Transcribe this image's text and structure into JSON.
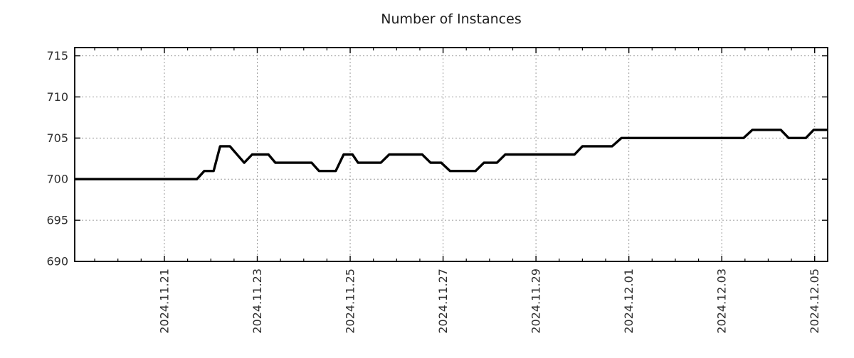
{
  "page": {
    "background": "#ffffff"
  },
  "chart_data": {
    "type": "line",
    "title": "Number of Instances",
    "xlabel": "",
    "ylabel": "",
    "legend": false,
    "grid": true,
    "x_axis": {
      "kind": "time",
      "units": "days since 2024-11-19 00:00",
      "xlim": [
        0.07,
        16.28
      ],
      "minor_tick_step_days": 0.5,
      "major_ticks": [
        {
          "t": 2,
          "label": "2024.11.21"
        },
        {
          "t": 4,
          "label": "2024.11.23"
        },
        {
          "t": 6,
          "label": "2024.11.25"
        },
        {
          "t": 8,
          "label": "2024.11.27"
        },
        {
          "t": 10,
          "label": "2024.11.29"
        },
        {
          "t": 12,
          "label": "2024.12.01"
        },
        {
          "t": 14,
          "label": "2024.12.03"
        },
        {
          "t": 16,
          "label": "2024.12.05"
        }
      ]
    },
    "y_axis": {
      "ylim": [
        690,
        716
      ],
      "ticks": [
        690,
        695,
        700,
        705,
        710,
        715
      ]
    },
    "series": [
      {
        "name": "instances",
        "color": "#000000",
        "points": [
          [
            0.07,
            700
          ],
          [
            2.7,
            700
          ],
          [
            2.86,
            701
          ],
          [
            3.06,
            701
          ],
          [
            3.2,
            704
          ],
          [
            3.41,
            704
          ],
          [
            3.72,
            702
          ],
          [
            3.89,
            703
          ],
          [
            4.24,
            703
          ],
          [
            4.39,
            702
          ],
          [
            5.17,
            702
          ],
          [
            5.33,
            701
          ],
          [
            5.69,
            701
          ],
          [
            5.86,
            703
          ],
          [
            6.05,
            703
          ],
          [
            6.17,
            702
          ],
          [
            6.66,
            702
          ],
          [
            6.84,
            703
          ],
          [
            7.55,
            703
          ],
          [
            7.73,
            702
          ],
          [
            7.96,
            702
          ],
          [
            8.15,
            701
          ],
          [
            8.7,
            701
          ],
          [
            8.88,
            702
          ],
          [
            9.16,
            702
          ],
          [
            9.34,
            703
          ],
          [
            10.83,
            703
          ],
          [
            11.0,
            704
          ],
          [
            11.64,
            704
          ],
          [
            11.84,
            705
          ],
          [
            14.47,
            705
          ],
          [
            14.66,
            706
          ],
          [
            15.27,
            706
          ],
          [
            15.44,
            705
          ],
          [
            15.81,
            705
          ],
          [
            15.98,
            706
          ],
          [
            16.28,
            706
          ]
        ]
      }
    ]
  },
  "style": {
    "line_color": "#000000",
    "line_width": 3.4,
    "grid_color": "#9a9a9a",
    "axis_color": "#000000",
    "tick_color": "#000000",
    "text_color": "#2e2e2e",
    "title_color": "#1c1c1c"
  }
}
